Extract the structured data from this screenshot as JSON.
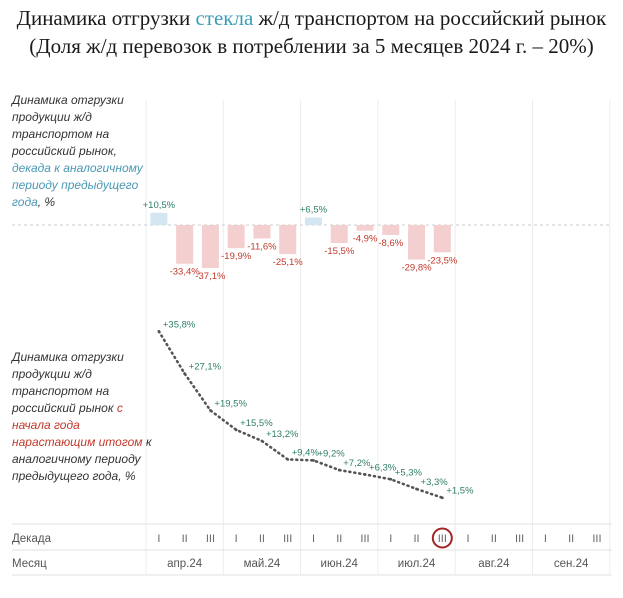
{
  "header": {
    "title_prefix": "Динамика отгрузки ",
    "title_highlight": "стекла",
    "title_suffix": " ж/д транспортом на российский рынок",
    "subtitle": "(Доля ж/д перевозок в потреблении за 5 месяцев 2024 г. – 20%)"
  },
  "top_desc": {
    "line1": "Динамика отгрузки продукции ж/д транспортом на российский рынок,",
    "line2": "декада к аналогичному периоду предыдущего",
    "line3": "года",
    "line4": ", %"
  },
  "bottom_desc": {
    "line1": "Динамика отгрузки продукции ж/д транспортом на российский рынок",
    "line2": "с начала года нарастающим итогом",
    "line3": "к аналогичному периоду предыдущего года, %"
  },
  "axis": {
    "decade_label": "Декада",
    "month_label": "Месяц",
    "decades": [
      "I",
      "II",
      "III"
    ],
    "months": [
      "апр.24",
      "май.24",
      "июн.24",
      "июл.24",
      "авг.24",
      "сен.24"
    ]
  },
  "colors": {
    "positive_bar": "#d3e6f2",
    "negative_bar": "#f3cfd0",
    "positive_label": "#2e7d68",
    "negative_label": "#c0392b",
    "line": "#555555",
    "cumulative_label": "#2e7d68",
    "marker": "#a32424"
  },
  "chart_data": [
    {
      "type": "bar",
      "title": "Динамика отгрузки продукции ж/д транспортом на российский рынок, декада к аналогичному периоду предыдущего года, %",
      "categories": [
        "апр I",
        "апр II",
        "апр III",
        "май I",
        "май II",
        "май III",
        "июн I",
        "июн II",
        "июн III",
        "июл I",
        "июл II",
        "июл III"
      ],
      "values": [
        10.5,
        -33.4,
        -37.1,
        -19.9,
        -11.6,
        -25.1,
        6.5,
        -15.5,
        -4.9,
        -8.6,
        -29.8,
        -23.5
      ],
      "labels": [
        "+10,5%",
        "-33,4%",
        "-37,1%",
        "-19,9%",
        "-11,6%",
        "-25,1%",
        "+6,5%",
        "-15,5%",
        "-4,9%",
        "-8,6%",
        "-29,8%",
        "-23,5%"
      ]
    },
    {
      "type": "line",
      "title": "Динамика отгрузки продукции ж/д транспортом на российский рынок с начала года нарастающим итогом к аналогичному периоду предыдущего года, %",
      "categories": [
        "апр I",
        "апр II",
        "апр III",
        "май I",
        "май II",
        "май III",
        "июн I",
        "июн II",
        "июн III",
        "июл I",
        "июл II",
        "июл III"
      ],
      "values": [
        35.8,
        27.1,
        19.5,
        15.5,
        13.2,
        9.4,
        9.2,
        7.2,
        6.3,
        5.3,
        3.3,
        1.5
      ],
      "labels": [
        "+35,8%",
        "+27,1%",
        "+19,5%",
        "+15,5%",
        "+13,2%",
        "+9,4%",
        "+9,2%",
        "+7,2%",
        "+6,3%",
        "+5,3%",
        "+3,3%",
        "+1,5%"
      ],
      "highlight": "июл III"
    }
  ]
}
